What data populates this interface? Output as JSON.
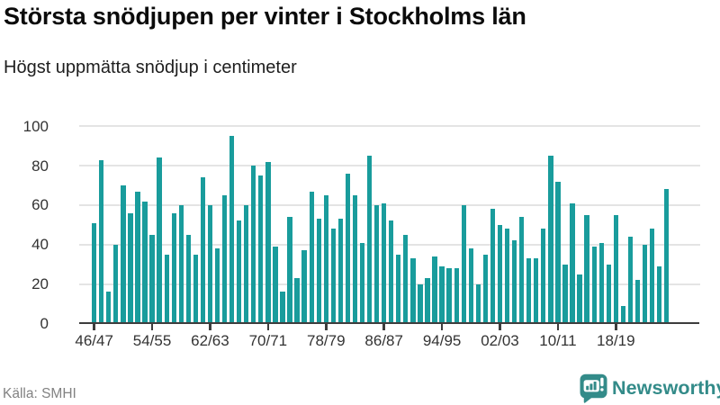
{
  "header": {
    "title": "Största snödjupen per vinter i Stockholms län",
    "subtitle": "Högst uppmätta snödjup i centimeter"
  },
  "footer": {
    "source": "Källa: SMHI",
    "brand": "Newsworthy"
  },
  "colors": {
    "bar": "#199c9c",
    "brand": "#338b89",
    "grid": "#e4e4e4",
    "axis": "#3d3d3d",
    "tick_text": "#333333",
    "muted_text": "#828282"
  },
  "chart_data": {
    "type": "bar",
    "title": "Största snödjupen per vinter i Stockholms län",
    "subtitle": "Högst uppmätta snödjup i centimeter",
    "unit": "centimeter",
    "xlabel": "",
    "ylabel": "",
    "ylim": [
      0,
      100
    ],
    "yticks": [
      0,
      20,
      40,
      60,
      80,
      100
    ],
    "grid": "horizontal",
    "legend": "none",
    "x_tick_indices": [
      0,
      8,
      16,
      24,
      32,
      40,
      48,
      56,
      64,
      72
    ],
    "x_tick_labels": [
      "46/47",
      "54/55",
      "62/63",
      "70/71",
      "78/79",
      "86/87",
      "94/95",
      "02/03",
      "10/11",
      "18/19"
    ],
    "categories": [
      "46/47",
      "47/48",
      "48/49",
      "49/50",
      "50/51",
      "51/52",
      "52/53",
      "53/54",
      "54/55",
      "55/56",
      "56/57",
      "57/58",
      "58/59",
      "59/60",
      "60/61",
      "61/62",
      "62/63",
      "63/64",
      "64/65",
      "65/66",
      "66/67",
      "67/68",
      "68/69",
      "69/70",
      "70/71",
      "71/72",
      "72/73",
      "73/74",
      "74/75",
      "75/76",
      "76/77",
      "77/78",
      "78/79",
      "79/80",
      "80/81",
      "81/82",
      "82/83",
      "83/84",
      "84/85",
      "85/86",
      "86/87",
      "87/88",
      "88/89",
      "89/90",
      "90/91",
      "91/92",
      "92/93",
      "93/94",
      "94/95",
      "95/96",
      "96/97",
      "97/98",
      "98/99",
      "99/00",
      "00/01",
      "01/02",
      "02/03",
      "03/04",
      "04/05",
      "05/06",
      "06/07",
      "07/08",
      "08/09",
      "09/10",
      "10/11",
      "11/12",
      "12/13",
      "13/14",
      "14/15",
      "15/16",
      "16/17",
      "17/18",
      "18/19",
      "19/20",
      "20/21",
      "21/22",
      "22/23",
      "23/24",
      "24/25",
      "25/26"
    ],
    "values": [
      51,
      83,
      16,
      40,
      70,
      56,
      67,
      62,
      45,
      84,
      35,
      56,
      60,
      45,
      35,
      74,
      60,
      38,
      65,
      95,
      52,
      60,
      80,
      75,
      82,
      39,
      16,
      54,
      23,
      37,
      67,
      53,
      65,
      48,
      53,
      76,
      65,
      41,
      85,
      60,
      61,
      52,
      35,
      45,
      33,
      20,
      23,
      34,
      29,
      28,
      28,
      60,
      38,
      20,
      35,
      58,
      50,
      48,
      42,
      54,
      33,
      33,
      48,
      85,
      72,
      30,
      61,
      25,
      55,
      39,
      41,
      30,
      55,
      9,
      44,
      22,
      40,
      48,
      29,
      68
    ]
  }
}
